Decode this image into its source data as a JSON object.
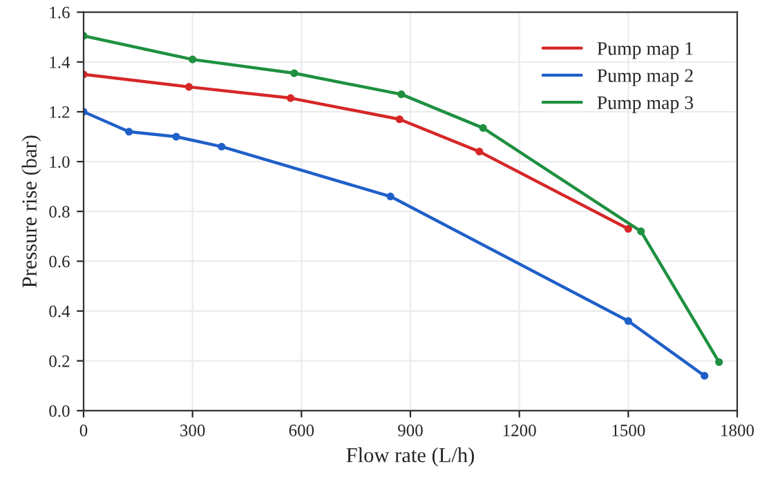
{
  "chart_data": {
    "type": "line",
    "xlabel": "Flow rate (L/h)",
    "ylabel": "Pressure rise (bar)",
    "xlim": [
      0,
      1800
    ],
    "xticks": [
      0,
      300,
      600,
      900,
      1200,
      1500,
      1800
    ],
    "ylim": [
      0,
      1.6
    ],
    "yticks": [
      {
        "value": 0,
        "label": "0.0"
      },
      {
        "value": 0.2,
        "label": "0.2"
      },
      {
        "value": 0.4,
        "label": "0.4"
      },
      {
        "value": 0.6,
        "label": "0.6"
      },
      {
        "value": 0.8,
        "label": "0.8"
      },
      {
        "value": 1.0,
        "label": "1.0"
      },
      {
        "value": 1.2,
        "label": "1.2"
      },
      {
        "value": 1.4,
        "label": "1.4"
      },
      {
        "value": 1.6,
        "label": "1.6"
      }
    ],
    "grid": true,
    "legend": "top right",
    "marker": "circle",
    "line_style": "solid",
    "series": [
      {
        "name": "Pump map 1",
        "color": "#d62728",
        "x": [
          0,
          290,
          570,
          870,
          1090,
          1500
        ],
        "values": [
          1.35,
          1.3,
          1.255,
          1.17,
          1.04,
          0.73
        ]
      },
      {
        "name": "Pump map 2",
        "color": "#1f5fc8",
        "x": [
          0,
          125,
          255,
          380,
          845,
          1500,
          1710
        ],
        "values": [
          1.2,
          1.12,
          1.1,
          1.06,
          0.86,
          0.36,
          0.14
        ]
      },
      {
        "name": "Pump map 3",
        "color": "#1e9040",
        "x": [
          0,
          300,
          580,
          875,
          1100,
          1535,
          1750
        ],
        "values": [
          1.505,
          1.41,
          1.355,
          1.27,
          1.135,
          0.72,
          0.195
        ]
      }
    ]
  }
}
